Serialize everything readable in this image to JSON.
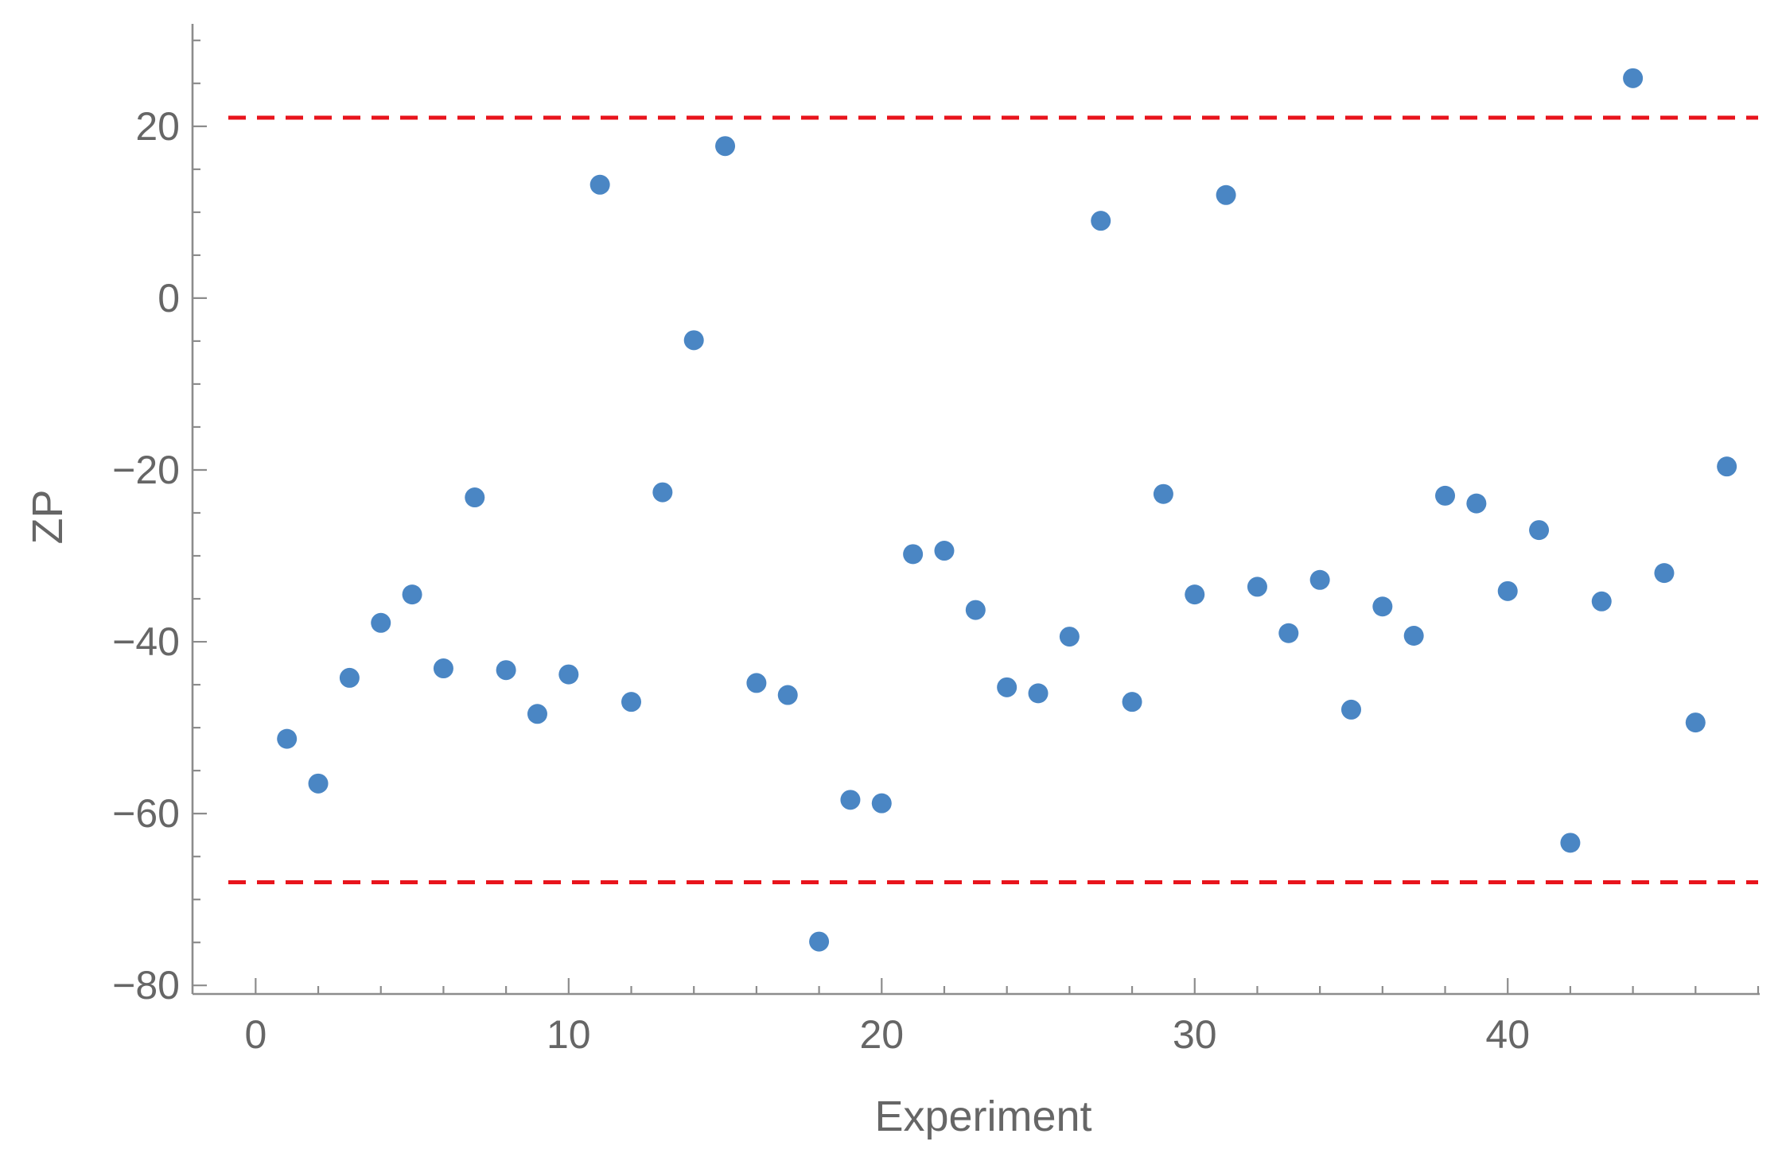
{
  "chart_data": {
    "type": "scatter",
    "title": "",
    "xlabel": "Experiment",
    "ylabel": "ZP",
    "xlim": [
      -1,
      48
    ],
    "ylim": [
      -81,
      31
    ],
    "x_ticks": [
      0,
      10,
      20,
      30,
      40
    ],
    "y_ticks": [
      -80,
      -60,
      -40,
      -20,
      0,
      20
    ],
    "x_tick_labels": [
      "0",
      "10",
      "20",
      "30",
      "40"
    ],
    "y_tick_labels": [
      "−80",
      "−60",
      "−40",
      "−20",
      "0",
      "20"
    ],
    "x_minor_step": 2,
    "y_minor_step": 5,
    "grid": false,
    "point_color": "#4a86c4",
    "reference_line_color": "#e8141c",
    "reference_lines": [
      {
        "y": 21,
        "style": "dashed"
      },
      {
        "y": -68,
        "style": "dashed"
      }
    ],
    "series": [
      {
        "x": [
          1,
          2,
          3,
          4,
          5,
          6,
          7,
          8,
          9,
          10,
          11,
          12,
          13,
          14,
          15,
          16,
          17,
          18,
          19,
          20,
          21,
          22,
          23,
          24,
          25,
          26,
          27,
          28,
          29,
          30,
          31,
          32,
          33,
          34,
          35,
          36,
          37,
          38,
          39,
          40,
          41,
          42,
          43,
          44,
          45,
          46,
          47
        ],
        "y": [
          -51.3,
          -56.5,
          -44.2,
          -37.8,
          -34.5,
          -43.1,
          -23.2,
          -43.3,
          -48.4,
          -43.8,
          13.2,
          -47.0,
          -22.6,
          -4.9,
          17.7,
          -44.8,
          -46.2,
          -74.9,
          -58.4,
          -58.8,
          -29.8,
          -29.4,
          -36.3,
          -45.3,
          -46.0,
          -39.4,
          9.0,
          -47.0,
          -22.8,
          -34.5,
          12.0,
          -33.6,
          -39.0,
          -32.8,
          -47.9,
          -35.9,
          -39.3,
          -23.0,
          -23.9,
          -34.1,
          -27.0,
          -63.4,
          -35.3,
          25.6,
          -32.0,
          -49.4,
          -19.6
        ]
      }
    ]
  }
}
